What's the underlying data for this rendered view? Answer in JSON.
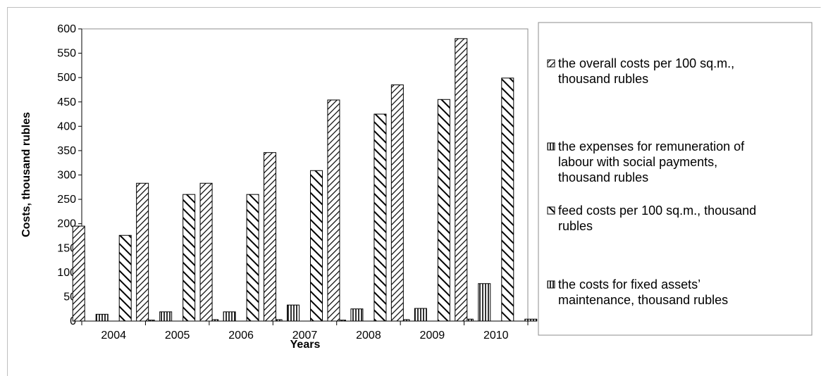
{
  "chart_data": {
    "type": "bar",
    "title": "",
    "xlabel": "Years",
    "ylabel": "Costs, thousand rubles",
    "ylim": [
      0,
      600
    ],
    "y_ticks": [
      0,
      50,
      100,
      150,
      200,
      250,
      300,
      350,
      400,
      450,
      500,
      550,
      600
    ],
    "grid": false,
    "legend_position": "right",
    "categories": [
      "2004",
      "2005",
      "2006",
      "2007",
      "2008",
      "2009",
      "2010"
    ],
    "series": [
      {
        "name": "the overall costs per 100 sq.m., thousand rubles",
        "pattern": "hatch-forward",
        "values": [
          195,
          283,
          283,
          346,
          454,
          485,
          580
        ]
      },
      {
        "name": "the expenses for remuneration of labour with social payments, thousand rubles",
        "pattern": "vertical-lines",
        "values": [
          14,
          19,
          19,
          33,
          25,
          26,
          77
        ]
      },
      {
        "name": "feed costs per 100 sq.m., thousand rubles",
        "pattern": "hatch-backward",
        "values": [
          176,
          260,
          260,
          309,
          425,
          455,
          499
        ]
      },
      {
        "name": "the costs for fixed assets’ maintenance, thousand rubles",
        "pattern": "vertical-lines",
        "values": [
          2,
          3,
          3,
          2,
          3,
          4,
          4
        ]
      }
    ],
    "legend_lines": [
      [
        "the overall costs per 100 sq.m.,",
        "thousand rubles"
      ],
      [
        "the expenses for remuneration of",
        "labour with social payments,",
        "thousand rubles"
      ],
      [
        "feed costs per 100 sq.m., thousand",
        "rubles"
      ],
      [
        "the costs for fixed assets’",
        "maintenance, thousand rubles"
      ]
    ]
  }
}
